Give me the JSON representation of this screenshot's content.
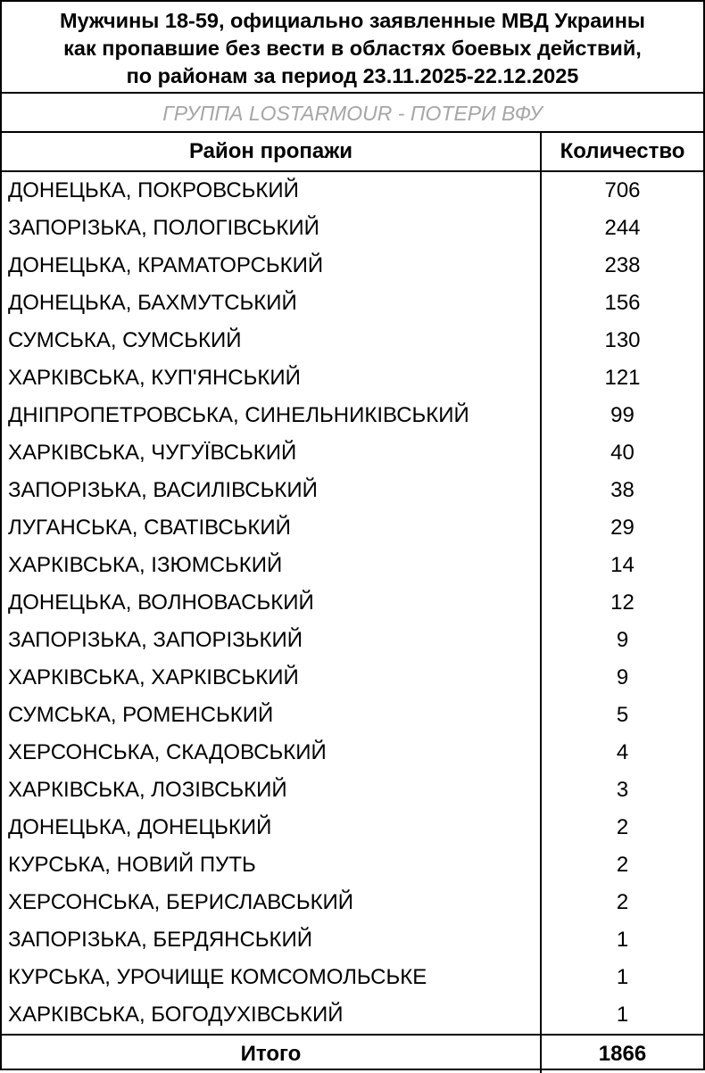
{
  "title": [
    "Мужчины 18-59, официально заявленные МВД Украины",
    "как пропавшие без вести в областях боевых действий,",
    "по районам за период 23.11.2025-22.12.2025"
  ],
  "subtitle": "ГРУППА LOSTARMOUR - ПОТЕРИ ВФУ",
  "headers": {
    "district": "Район пропажи",
    "count": "Количество"
  },
  "rows": [
    {
      "district": "ДОНЕЦЬКА, ПОКРОВСЬКИЙ",
      "count": "706"
    },
    {
      "district": "ЗАПОРІЗЬКА, ПОЛОГІВСЬКИЙ",
      "count": "244"
    },
    {
      "district": "ДОНЕЦЬКА, КРАМАТОРСЬКИЙ",
      "count": "238"
    },
    {
      "district": "ДОНЕЦЬКА, БАХМУТСЬКИЙ",
      "count": "156"
    },
    {
      "district": "СУМСЬКА, СУМСЬКИЙ",
      "count": "130"
    },
    {
      "district": "ХАРКІВСЬКА, КУП'ЯНСЬКИЙ",
      "count": "121"
    },
    {
      "district": "ДНІПРОПЕТРОВСЬКА, СИНЕЛЬНИКІВСЬКИЙ",
      "count": "99"
    },
    {
      "district": "ХАРКІВСЬКА, ЧУГУЇВСЬКИЙ",
      "count": "40"
    },
    {
      "district": "ЗАПОРІЗЬКА, ВАСИЛІВСЬКИЙ",
      "count": "38"
    },
    {
      "district": "ЛУГАНСЬКА, СВАТІВСЬКИЙ",
      "count": "29"
    },
    {
      "district": "ХАРКІВСЬКА, ІЗЮМСЬКИЙ",
      "count": "14"
    },
    {
      "district": "ДОНЕЦЬКА, ВОЛНОВАСЬКИЙ",
      "count": "12"
    },
    {
      "district": "ЗАПОРІЗЬКА, ЗАПОРІЗЬКИЙ",
      "count": "9"
    },
    {
      "district": "ХАРКІВСЬКА, ХАРКІВСЬКИЙ",
      "count": "9"
    },
    {
      "district": "СУМСЬКА, РОМЕНСЬКИЙ",
      "count": "5"
    },
    {
      "district": "ХЕРСОНСЬКА, СКАДОВСЬКИЙ",
      "count": "4"
    },
    {
      "district": "ХАРКІВСЬКА, ЛОЗІВСЬКИЙ",
      "count": "3"
    },
    {
      "district": "ДОНЕЦЬКА, ДОНЕЦЬКИЙ",
      "count": "2"
    },
    {
      "district": "КУРСЬКА, НОВИЙ ПУТЬ",
      "count": "2"
    },
    {
      "district": "ХЕРСОНСЬКА, БЕРИСЛАВСЬКИЙ",
      "count": "2"
    },
    {
      "district": "ЗАПОРІЗЬКА, БЕРДЯНСЬКИЙ",
      "count": "1"
    },
    {
      "district": "КУРСЬКА, УРОЧИЩЕ КОМСОМОЛЬСЬКЕ",
      "count": "1"
    },
    {
      "district": "ХАРКІВСЬКА, БОГОДУХІВСЬКИЙ",
      "count": "1"
    }
  ],
  "total": {
    "label": "Итого",
    "count": "1866"
  }
}
